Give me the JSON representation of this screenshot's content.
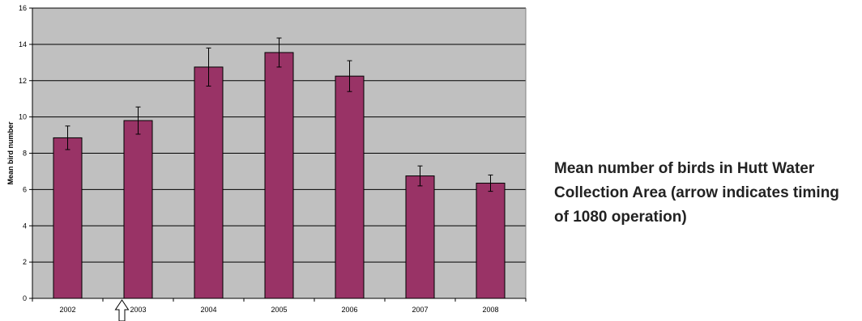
{
  "caption": "Mean number of birds in Hutt Water Collection Area (arrow indicates timing of 1080 operation)",
  "chart_data": {
    "type": "bar",
    "title": "",
    "xlabel": "",
    "ylabel": "Mean bird number",
    "categories": [
      "2002",
      "2003",
      "2004",
      "2005",
      "2006",
      "2007",
      "2008"
    ],
    "values": [
      8.85,
      9.8,
      12.75,
      13.55,
      12.25,
      6.75,
      6.35
    ],
    "error_upper": [
      9.5,
      10.55,
      13.8,
      14.35,
      13.1,
      7.3,
      6.8
    ],
    "error_lower": [
      8.2,
      9.05,
      11.7,
      12.75,
      11.4,
      6.2,
      5.9
    ],
    "ylim": [
      0,
      16
    ],
    "yticks": [
      0,
      2,
      4,
      6,
      8,
      10,
      12,
      14,
      16
    ],
    "grid": true,
    "legend": "none",
    "annotation": {
      "type": "arrow",
      "category": "2003",
      "direction": "up",
      "meaning": "timing of 1080 operation"
    },
    "colors": {
      "bar": "#993366",
      "plot_background": "#c0c0c0",
      "gridline": "#000000"
    }
  }
}
